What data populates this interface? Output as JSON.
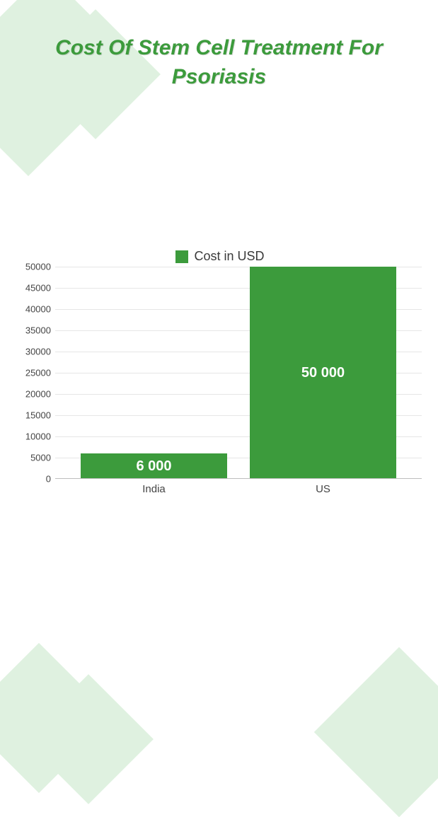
{
  "title": "Cost Of Stem Cell Treatment For Psoriasis",
  "chart": {
    "type": "bar",
    "legend_label": "Cost in USD",
    "categories": [
      "India",
      "US"
    ],
    "values": [
      6000,
      50000
    ],
    "value_labels": [
      "6 000",
      "50 000"
    ],
    "bar_color": "#3c9b3c",
    "ylim": [
      0,
      50000
    ],
    "ytick_step": 5000,
    "yticks": [
      0,
      5000,
      10000,
      15000,
      20000,
      25000,
      30000,
      35000,
      40000,
      45000,
      50000
    ],
    "background_color": "#ffffff",
    "grid_color": "#e6e6e6",
    "text_color": "#444444",
    "title_color": "#3c9b3c",
    "title_fontsize": 30,
    "label_fontsize": 15,
    "bar_label_fontsize": 20,
    "bar_width": 0.94
  },
  "decoration_color": "#dff1e0"
}
